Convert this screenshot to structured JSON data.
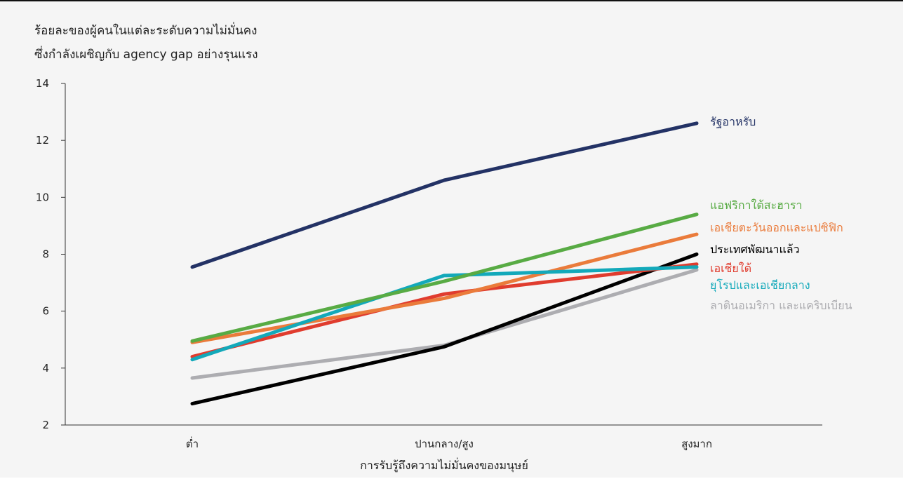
{
  "chart_title": {
    "line1": "ร้อยละของผู้คนในแต่ละระดับความไม่มั่นคง",
    "line2": "ซึ่งกำลังเผชิญกับ agency gap อย่างรุนแรง"
  },
  "chart_data": {
    "type": "line",
    "title": "ร้อยละของผู้คนในแต่ละระดับความไม่มั่นคง ซึ่งกำลังเผชิญกับ agency gap อย่างรุนแรง",
    "xlabel": "การรับรู้ถึงความไม่มั่นคงของมนุษย์",
    "ylabel": "",
    "categories": [
      "ต่ำ",
      "ปานกลาง/สูง",
      "สูงมาก"
    ],
    "ylim": [
      2,
      14
    ],
    "yticks": [
      2,
      4,
      6,
      8,
      10,
      12,
      14
    ],
    "grid": false,
    "legend": "direct labels at right end of lines",
    "series": [
      {
        "name": "รัฐอาหรับ",
        "values": [
          7.55,
          10.6,
          12.6
        ],
        "color": "#233265"
      },
      {
        "name": "แอฟริกาใต้สะฮารา",
        "values": [
          4.95,
          7.05,
          9.4
        ],
        "color": "#58ab44"
      },
      {
        "name": "เอเชียตะวันออกและแปซิฟิก",
        "values": [
          4.9,
          6.45,
          8.7
        ],
        "color": "#ea7b3b"
      },
      {
        "name": "ประเทศพัฒนาแล้ว",
        "values": [
          2.75,
          4.75,
          8.0
        ],
        "color": "#000000"
      },
      {
        "name": "เอเชียใต้",
        "values": [
          4.4,
          6.6,
          7.65
        ],
        "color": "#e03c2e"
      },
      {
        "name": "ยุโรปและเอเชียกลาง",
        "values": [
          4.3,
          7.25,
          7.55
        ],
        "color": "#13a9ba"
      },
      {
        "name": "ลาตินอเมริกา และแคริบเบียน",
        "values": [
          3.65,
          4.8,
          7.45
        ],
        "color": "#adadb1"
      }
    ]
  }
}
